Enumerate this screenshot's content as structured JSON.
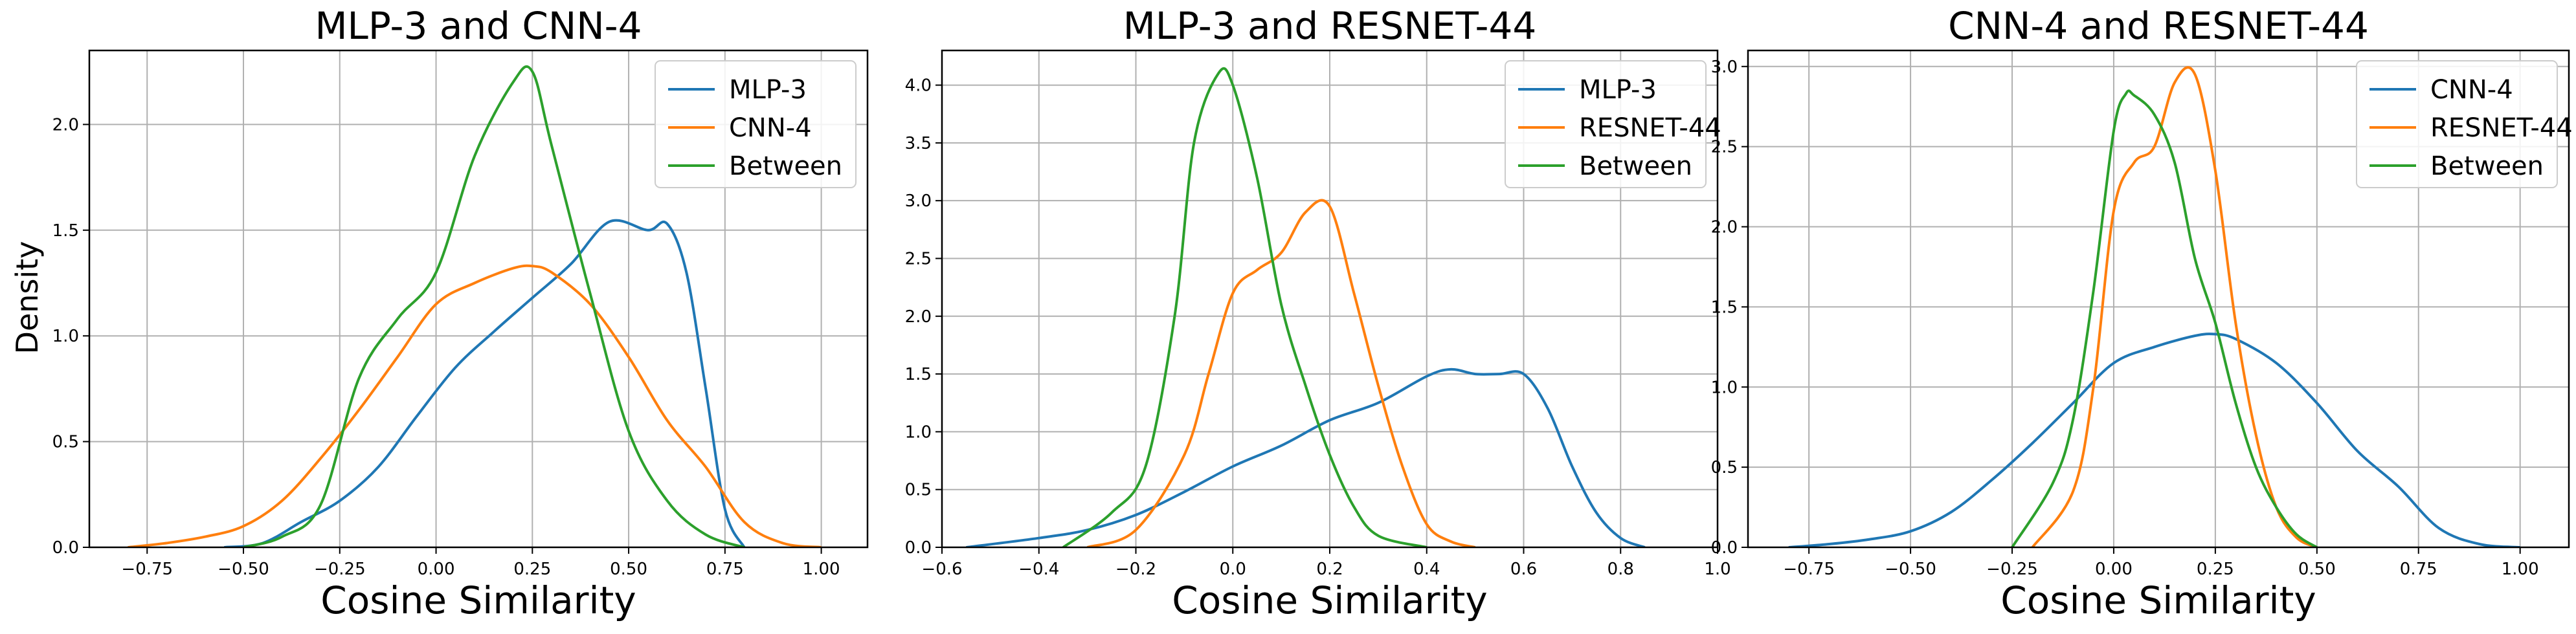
{
  "figure": {
    "ylabel": "Density"
  },
  "chart_data": [
    {
      "type": "line",
      "title": "MLP-3 and CNN-4",
      "xlabel": "Cosine Similarity",
      "ylabel": "Density",
      "xlim": [
        -0.9,
        1.12
      ],
      "ylim": [
        0,
        2.35
      ],
      "xticks": [
        -0.75,
        -0.5,
        -0.25,
        0.0,
        0.25,
        0.5,
        0.75,
        1.0
      ],
      "xtick_labels": [
        "−0.75",
        "−0.50",
        "−0.25",
        "0.00",
        "0.25",
        "0.50",
        "0.75",
        "1.00"
      ],
      "yticks": [
        0,
        0.5,
        1.0,
        1.5,
        2.0
      ],
      "ytick_labels": [
        "0.0",
        "0.5",
        "1.0",
        "1.5",
        "2.0"
      ],
      "grid": true,
      "legend_position": "top-right",
      "series": [
        {
          "name": "MLP-3",
          "color": "#1f77b4",
          "x": [
            -0.55,
            -0.45,
            -0.35,
            -0.25,
            -0.15,
            -0.05,
            0.05,
            0.15,
            0.25,
            0.35,
            0.45,
            0.55,
            0.6,
            0.65,
            0.7,
            0.75,
            0.8
          ],
          "y": [
            0,
            0.02,
            0.12,
            0.22,
            0.38,
            0.62,
            0.85,
            1.02,
            1.18,
            1.34,
            1.54,
            1.5,
            1.53,
            1.3,
            0.75,
            0.18,
            0
          ]
        },
        {
          "name": "CNN-4",
          "color": "#ff7f0e",
          "x": [
            -0.8,
            -0.7,
            -0.6,
            -0.5,
            -0.4,
            -0.3,
            -0.2,
            -0.1,
            0.0,
            0.1,
            0.2,
            0.25,
            0.3,
            0.4,
            0.5,
            0.6,
            0.7,
            0.8,
            0.9,
            1.0
          ],
          "y": [
            0,
            0.02,
            0.05,
            0.1,
            0.22,
            0.42,
            0.65,
            0.9,
            1.15,
            1.25,
            1.32,
            1.33,
            1.3,
            1.15,
            0.9,
            0.6,
            0.38,
            0.12,
            0.02,
            0
          ]
        },
        {
          "name": "Between",
          "color": "#2ca02c",
          "x": [
            -0.5,
            -0.4,
            -0.3,
            -0.2,
            -0.1,
            0.0,
            0.1,
            0.2,
            0.25,
            0.3,
            0.4,
            0.5,
            0.6,
            0.7,
            0.8
          ],
          "y": [
            0,
            0.05,
            0.2,
            0.8,
            1.08,
            1.3,
            1.85,
            2.2,
            2.25,
            1.9,
            1.2,
            0.55,
            0.22,
            0.06,
            0
          ]
        }
      ]
    },
    {
      "type": "line",
      "title": "MLP-3 and RESNET-44",
      "xlabel": "Cosine Similarity",
      "ylabel": "",
      "xlim": [
        -0.6,
        1.0
      ],
      "ylim": [
        0,
        4.3
      ],
      "xticks": [
        -0.6,
        -0.4,
        -0.2,
        0.0,
        0.2,
        0.4,
        0.6,
        0.8,
        1.0
      ],
      "xtick_labels": [
        "−0.6",
        "−0.4",
        "−0.2",
        "0.0",
        "0.2",
        "0.4",
        "0.6",
        "0.8",
        "1.0"
      ],
      "yticks": [
        0,
        0.5,
        1.0,
        1.5,
        2.0,
        2.5,
        3.0,
        3.5,
        4.0
      ],
      "ytick_labels": [
        "0.0",
        "0.5",
        "1.0",
        "1.5",
        "2.0",
        "2.5",
        "3.0",
        "3.5",
        "4.0"
      ],
      "grid": true,
      "legend_position": "top-right",
      "series": [
        {
          "name": "MLP-3",
          "color": "#1f77b4",
          "x": [
            -0.55,
            -0.4,
            -0.3,
            -0.2,
            -0.1,
            0.0,
            0.1,
            0.2,
            0.3,
            0.4,
            0.45,
            0.5,
            0.55,
            0.6,
            0.65,
            0.7,
            0.75,
            0.8,
            0.85
          ],
          "y": [
            0,
            0.08,
            0.15,
            0.28,
            0.48,
            0.7,
            0.88,
            1.1,
            1.25,
            1.48,
            1.54,
            1.5,
            1.5,
            1.5,
            1.2,
            0.7,
            0.3,
            0.08,
            0
          ]
        },
        {
          "name": "RESNET-44",
          "color": "#ff7f0e",
          "x": [
            -0.3,
            -0.2,
            -0.1,
            -0.05,
            0.0,
            0.05,
            0.1,
            0.15,
            0.2,
            0.25,
            0.3,
            0.35,
            0.4,
            0.45,
            0.5
          ],
          "y": [
            0,
            0.15,
            0.8,
            1.5,
            2.2,
            2.4,
            2.55,
            2.9,
            2.95,
            2.2,
            1.4,
            0.7,
            0.2,
            0.05,
            0
          ]
        },
        {
          "name": "Between",
          "color": "#2ca02c",
          "x": [
            -0.35,
            -0.25,
            -0.18,
            -0.12,
            -0.08,
            -0.03,
            0.0,
            0.05,
            0.1,
            0.15,
            0.2,
            0.25,
            0.3,
            0.4
          ],
          "y": [
            0,
            0.3,
            0.7,
            2.0,
            3.5,
            4.1,
            4.0,
            3.2,
            2.1,
            1.4,
            0.8,
            0.35,
            0.1,
            0
          ]
        }
      ]
    },
    {
      "type": "line",
      "title": "CNN-4 and RESNET-44",
      "xlabel": "Cosine Similarity",
      "ylabel": "",
      "xlim": [
        -0.9,
        1.12
      ],
      "ylim": [
        0,
        3.1
      ],
      "xticks": [
        -0.75,
        -0.5,
        -0.25,
        0.0,
        0.25,
        0.5,
        0.75,
        1.0
      ],
      "xtick_labels": [
        "−0.75",
        "−0.50",
        "−0.25",
        "0.00",
        "0.25",
        "0.50",
        "0.75",
        "1.00"
      ],
      "yticks": [
        0,
        0.5,
        1.0,
        1.5,
        2.0,
        2.5,
        3.0
      ],
      "ytick_labels": [
        "0.0",
        "0.5",
        "1.0",
        "1.5",
        "2.0",
        "2.5",
        "3.0"
      ],
      "grid": true,
      "legend_position": "top-right",
      "series": [
        {
          "name": "CNN-4",
          "color": "#1f77b4",
          "x": [
            -0.8,
            -0.7,
            -0.6,
            -0.5,
            -0.4,
            -0.3,
            -0.2,
            -0.1,
            0.0,
            0.1,
            0.2,
            0.25,
            0.3,
            0.4,
            0.5,
            0.6,
            0.7,
            0.8,
            0.9,
            1.0
          ],
          "y": [
            0,
            0.02,
            0.05,
            0.1,
            0.22,
            0.42,
            0.65,
            0.9,
            1.15,
            1.25,
            1.32,
            1.33,
            1.3,
            1.15,
            0.9,
            0.6,
            0.38,
            0.12,
            0.02,
            0
          ]
        },
        {
          "name": "RESNET-44",
          "color": "#ff7f0e",
          "x": [
            -0.2,
            -0.1,
            -0.05,
            0.0,
            0.05,
            0.1,
            0.15,
            0.2,
            0.25,
            0.3,
            0.35,
            0.4,
            0.45,
            0.5
          ],
          "y": [
            0,
            0.35,
            1.0,
            2.1,
            2.4,
            2.5,
            2.9,
            2.95,
            2.35,
            1.4,
            0.7,
            0.25,
            0.06,
            0
          ]
        },
        {
          "name": "Between",
          "color": "#2ca02c",
          "x": [
            -0.25,
            -0.15,
            -0.1,
            -0.05,
            0.0,
            0.03,
            0.05,
            0.1,
            0.15,
            0.2,
            0.25,
            0.3,
            0.35,
            0.4,
            0.45,
            0.5
          ],
          "y": [
            0,
            0.4,
            0.8,
            1.6,
            2.6,
            2.83,
            2.82,
            2.7,
            2.4,
            1.8,
            1.4,
            0.9,
            0.5,
            0.25,
            0.08,
            0
          ]
        }
      ]
    }
  ]
}
